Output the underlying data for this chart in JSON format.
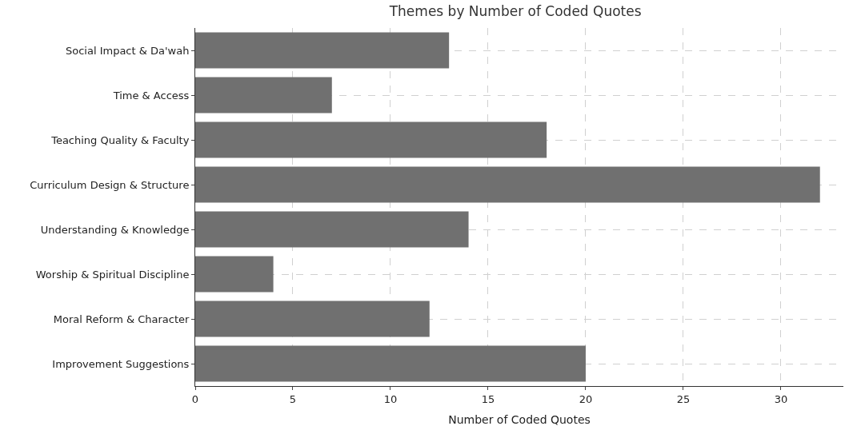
{
  "chart_data": {
    "type": "bar",
    "orientation": "horizontal",
    "title": "Themes by Number of Coded Quotes",
    "xlabel": "Number of Coded Quotes",
    "categories": [
      "Social Impact & Da'wah",
      "Time & Access",
      "Teaching Quality & Faculty",
      "Curriculum Design & Structure",
      "Understanding & Knowledge",
      "Worship & Spiritual Discipline",
      "Moral Reform & Character",
      "Improvement Suggestions"
    ],
    "values": [
      13,
      7,
      18,
      32,
      14,
      4,
      12,
      20
    ],
    "color": "#707070",
    "xlim": [
      0,
      33.2
    ],
    "xticks": [
      0,
      5,
      10,
      15,
      20,
      25,
      30
    ],
    "grid": true
  }
}
